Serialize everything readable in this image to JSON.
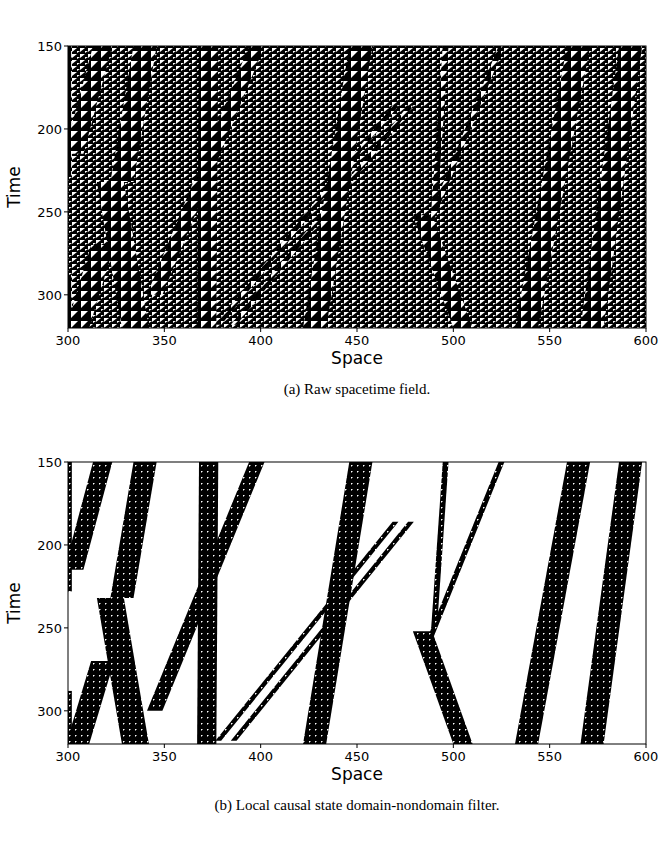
{
  "chart_data": [
    {
      "type": "spacetime",
      "title": "(a) Raw spacetime field.",
      "x_label": "Space",
      "y_label": "Time",
      "xlim": [
        300,
        600
      ],
      "ylim": [
        150,
        320
      ],
      "xticks": [
        300,
        350,
        400,
        450,
        500,
        550,
        600
      ],
      "yticks": [
        150,
        200,
        250,
        300
      ],
      "bands": [
        {
          "x": [
            301,
            301
          ],
          "t": [
            150,
            228
          ],
          "width": 2
        },
        {
          "x": [
            301,
            301
          ],
          "t": [
            288,
            320
          ],
          "width": 2
        },
        {
          "x": [
            318,
            303
          ],
          "t": [
            150,
            215
          ],
          "width": 10
        },
        {
          "x": [
            340,
            328
          ],
          "t": [
            150,
            232
          ],
          "width": 12
        },
        {
          "x": [
            322,
            335
          ],
          "t": [
            232,
            320
          ],
          "width": 14
        },
        {
          "x": [
            318,
            305
          ],
          "t": [
            270,
            320
          ],
          "width": 12
        },
        {
          "x": [
            373,
            372
          ],
          "t": [
            150,
            320
          ],
          "width": 10
        },
        {
          "x": [
            398,
            345
          ],
          "t": [
            150,
            300
          ],
          "width": 8
        },
        {
          "x": [
            470,
            378
          ],
          "t": [
            186,
            318
          ],
          "width": 3
        },
        {
          "x": [
            478,
            386
          ],
          "t": [
            186,
            318
          ],
          "width": 3
        },
        {
          "x": [
            452,
            428
          ],
          "t": [
            150,
            320
          ],
          "width": 12
        },
        {
          "x": [
            496,
            490
          ],
          "t": [
            150,
            250
          ],
          "width": 3
        },
        {
          "x": [
            525,
            486
          ],
          "t": [
            150,
            262
          ],
          "width": 3
        },
        {
          "x": [
            484,
            505
          ],
          "t": [
            252,
            320
          ],
          "width": 10
        },
        {
          "x": [
            565,
            538
          ],
          "t": [
            150,
            320
          ],
          "width": 12
        },
        {
          "x": [
            592,
            572
          ],
          "t": [
            150,
            320
          ],
          "width": 12
        }
      ]
    },
    {
      "type": "filter",
      "title": "(b) Local causal state domain-nondomain filter.",
      "x_label": "Space",
      "y_label": "Time",
      "xlim": [
        300,
        600
      ],
      "ylim": [
        150,
        320
      ],
      "xticks": [
        300,
        350,
        400,
        450,
        500,
        550,
        600
      ],
      "yticks": [
        150,
        200,
        250,
        300
      ],
      "bands": [
        {
          "x": [
            301,
            301
          ],
          "t": [
            150,
            228
          ],
          "width": 2
        },
        {
          "x": [
            301,
            301
          ],
          "t": [
            288,
            320
          ],
          "width": 2
        },
        {
          "x": [
            318,
            303
          ],
          "t": [
            150,
            215
          ],
          "width": 10
        },
        {
          "x": [
            340,
            328
          ],
          "t": [
            150,
            232
          ],
          "width": 12
        },
        {
          "x": [
            322,
            335
          ],
          "t": [
            232,
            320
          ],
          "width": 14
        },
        {
          "x": [
            318,
            305
          ],
          "t": [
            270,
            320
          ],
          "width": 12
        },
        {
          "x": [
            373,
            372
          ],
          "t": [
            150,
            320
          ],
          "width": 10
        },
        {
          "x": [
            398,
            345
          ],
          "t": [
            150,
            300
          ],
          "width": 8
        },
        {
          "x": [
            470,
            378
          ],
          "t": [
            186,
            318
          ],
          "width": 3
        },
        {
          "x": [
            478,
            386
          ],
          "t": [
            186,
            318
          ],
          "width": 3
        },
        {
          "x": [
            452,
            428
          ],
          "t": [
            150,
            320
          ],
          "width": 12
        },
        {
          "x": [
            496,
            490
          ],
          "t": [
            150,
            250
          ],
          "width": 3
        },
        {
          "x": [
            525,
            486
          ],
          "t": [
            150,
            262
          ],
          "width": 3
        },
        {
          "x": [
            484,
            505
          ],
          "t": [
            252,
            320
          ],
          "width": 10
        },
        {
          "x": [
            565,
            538
          ],
          "t": [
            150,
            320
          ],
          "width": 12
        },
        {
          "x": [
            592,
            572
          ],
          "t": [
            150,
            320
          ],
          "width": 12
        }
      ]
    }
  ]
}
